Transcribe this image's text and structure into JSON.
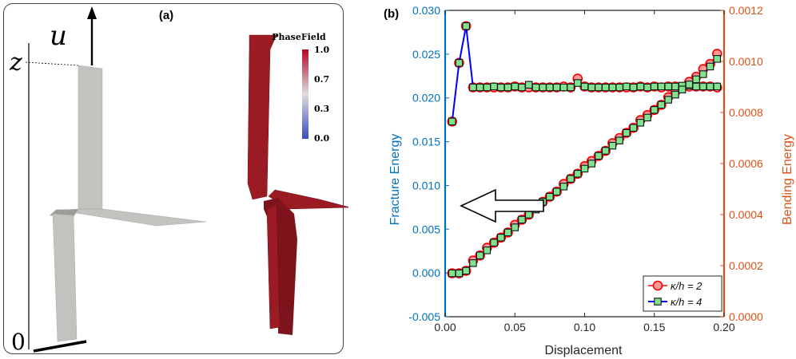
{
  "panel_a": {
    "label": "(a)",
    "axis_top_symbol": "u",
    "axis_z_symbol": "z",
    "axis_zero_symbol": "0",
    "colorbar": {
      "title": "PhaseField",
      "ticks": [
        "1.0",
        "0.7",
        "0.3",
        "0.0"
      ],
      "colors": [
        "#3b4cc0",
        "#dddddd",
        "#b40426"
      ]
    },
    "colors": {
      "undamaged_strip": "#c4c2bf",
      "damaged_strip": "#9b1b24"
    }
  },
  "chart_data": {
    "type": "line",
    "panel_label": "(b)",
    "xlabel": "Displacement",
    "ylabel_left": "Fracture Energy",
    "ylabel_right": "Bending Energy",
    "xlim": [
      0,
      0.2
    ],
    "ylim_left": [
      -0.005,
      0.03
    ],
    "ylim_right": [
      0,
      0.0012
    ],
    "xticks": [
      "0.00",
      "0.05",
      "0.10",
      "0.15",
      "0.20"
    ],
    "yticks_left": [
      "-0.005",
      "0.000",
      "0.005",
      "0.010",
      "0.015",
      "0.020",
      "0.025",
      "0.030"
    ],
    "yticks_right": [
      "0.0000",
      "0.0002",
      "0.0004",
      "0.0006",
      "0.0008",
      "0.0010",
      "0.0012"
    ],
    "colors": {
      "left_axis": "#0072bd",
      "right_axis": "#d95319",
      "k2_marker": "#ff0000",
      "k4_line": "#0000ff",
      "k4_marker_fill": "#7fe38f"
    },
    "legend": {
      "position": "bottom-right",
      "entries": [
        "κ/h = 2",
        "κ/h = 4"
      ]
    },
    "annotation": "arrow pointing left toward Fracture Energy axis",
    "series": [
      {
        "name": "κ/h = 2",
        "axis": "left",
        "x": [
          0.005,
          0.01,
          0.015,
          0.02,
          0.025,
          0.03,
          0.035,
          0.04,
          0.045,
          0.05,
          0.055,
          0.06,
          0.065,
          0.07,
          0.075,
          0.08,
          0.085,
          0.09,
          0.095,
          0.1,
          0.105,
          0.11,
          0.115,
          0.12,
          0.125,
          0.13,
          0.135,
          0.14,
          0.145,
          0.15,
          0.155,
          0.16,
          0.165,
          0.17,
          0.175,
          0.18,
          0.185,
          0.19,
          0.195
        ],
        "y": [
          0.0173,
          0.024,
          0.0282,
          0.0212,
          0.0212,
          0.0212,
          0.0212,
          0.0212,
          0.0212,
          0.0213,
          0.0212,
          0.0212,
          0.0212,
          0.0212,
          0.0212,
          0.0212,
          0.0213,
          0.0212,
          0.0222,
          0.0213,
          0.0212,
          0.0212,
          0.0212,
          0.0212,
          0.0212,
          0.0212,
          0.0212,
          0.0213,
          0.0212,
          0.0213,
          0.0212,
          0.0213,
          0.0213,
          0.0212,
          0.0213,
          0.0213,
          0.0213,
          0.0213,
          0.0212
        ]
      },
      {
        "name": "κ/h = 4",
        "axis": "left",
        "x": [
          0.005,
          0.01,
          0.015,
          0.02,
          0.025,
          0.03,
          0.035,
          0.04,
          0.045,
          0.05,
          0.055,
          0.06,
          0.065,
          0.07,
          0.075,
          0.08,
          0.085,
          0.09,
          0.095,
          0.1,
          0.105,
          0.11,
          0.115,
          0.12,
          0.125,
          0.13,
          0.135,
          0.14,
          0.145,
          0.15,
          0.155,
          0.16,
          0.165,
          0.17,
          0.175,
          0.18,
          0.185,
          0.19,
          0.195
        ],
        "y": [
          0.0173,
          0.024,
          0.0282,
          0.0212,
          0.0212,
          0.0212,
          0.0213,
          0.0212,
          0.0212,
          0.0213,
          0.0212,
          0.0215,
          0.0212,
          0.0212,
          0.0212,
          0.0212,
          0.0212,
          0.0212,
          0.0217,
          0.0213,
          0.0212,
          0.0212,
          0.0212,
          0.0212,
          0.0212,
          0.0213,
          0.0212,
          0.0213,
          0.0212,
          0.0213,
          0.0213,
          0.0213,
          0.0213,
          0.0214,
          0.0214,
          0.0213,
          0.0213,
          0.0213,
          0.0213
        ]
      },
      {
        "name": "κ/h = 2",
        "axis": "right",
        "x": [
          0.005,
          0.01,
          0.015,
          0.02,
          0.025,
          0.03,
          0.035,
          0.04,
          0.045,
          0.05,
          0.055,
          0.06,
          0.065,
          0.07,
          0.075,
          0.08,
          0.085,
          0.09,
          0.095,
          0.1,
          0.105,
          0.11,
          0.115,
          0.12,
          0.125,
          0.13,
          0.135,
          0.14,
          0.145,
          0.15,
          0.155,
          0.16,
          0.165,
          0.17,
          0.175,
          0.18,
          0.185,
          0.19,
          0.195
        ],
        "y": [
          0.00017,
          0.00017,
          0.00018,
          0.00022,
          0.00024,
          0.00027,
          0.00029,
          0.00031,
          0.00033,
          0.00036,
          0.00038,
          0.0004,
          0.00043,
          0.00045,
          0.00047,
          0.00049,
          0.00052,
          0.00054,
          0.00056,
          0.00059,
          0.00061,
          0.00063,
          0.00065,
          0.00068,
          0.0007,
          0.00072,
          0.00074,
          0.00077,
          0.00079,
          0.00081,
          0.00083,
          0.00086,
          0.00088,
          0.0009,
          0.00092,
          0.00094,
          0.00097,
          0.00099,
          0.00103
        ]
      },
      {
        "name": "κ/h = 4",
        "axis": "right",
        "x": [
          0.005,
          0.01,
          0.015,
          0.02,
          0.025,
          0.03,
          0.035,
          0.04,
          0.045,
          0.05,
          0.055,
          0.06,
          0.065,
          0.07,
          0.075,
          0.08,
          0.085,
          0.09,
          0.095,
          0.1,
          0.105,
          0.11,
          0.115,
          0.12,
          0.125,
          0.13,
          0.135,
          0.14,
          0.145,
          0.15,
          0.155,
          0.16,
          0.165,
          0.17,
          0.175,
          0.18,
          0.185,
          0.19,
          0.195
        ],
        "y": [
          0.00017,
          0.00017,
          0.00018,
          0.00021,
          0.00024,
          0.00026,
          0.00029,
          0.00031,
          0.00033,
          0.00035,
          0.00038,
          0.0004,
          0.00042,
          0.00045,
          0.00047,
          0.00049,
          0.00051,
          0.00054,
          0.00056,
          0.00058,
          0.0006,
          0.00063,
          0.00065,
          0.00067,
          0.00069,
          0.00072,
          0.00074,
          0.00076,
          0.00078,
          0.00081,
          0.00083,
          0.00085,
          0.00087,
          0.00089,
          0.00091,
          0.00093,
          0.00095,
          0.00098,
          0.00101
        ]
      }
    ]
  }
}
